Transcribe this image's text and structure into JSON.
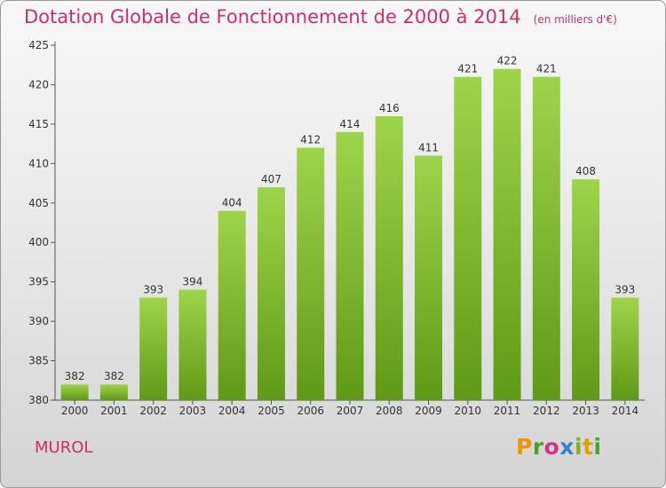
{
  "title": "Dotation Globale de Fonctionnement de 2000 à 2014",
  "unit": "(en milliers d'€)",
  "commune": "MUROL",
  "logo": "Proxiti",
  "chart_data": {
    "type": "bar",
    "categories": [
      "2000",
      "2001",
      "2002",
      "2003",
      "2004",
      "2005",
      "2006",
      "2007",
      "2008",
      "2009",
      "2010",
      "2011",
      "2012",
      "2013",
      "2014"
    ],
    "values": [
      382,
      382,
      393,
      394,
      404,
      407,
      412,
      414,
      416,
      411,
      421,
      422,
      421,
      408,
      393
    ],
    "ylim": [
      380,
      425
    ],
    "yticks": [
      380,
      385,
      390,
      395,
      400,
      405,
      410,
      415,
      420,
      425
    ],
    "grid": false,
    "bar_color_top": "#9ed44a",
    "bar_color_bottom": "#5f9a16"
  }
}
